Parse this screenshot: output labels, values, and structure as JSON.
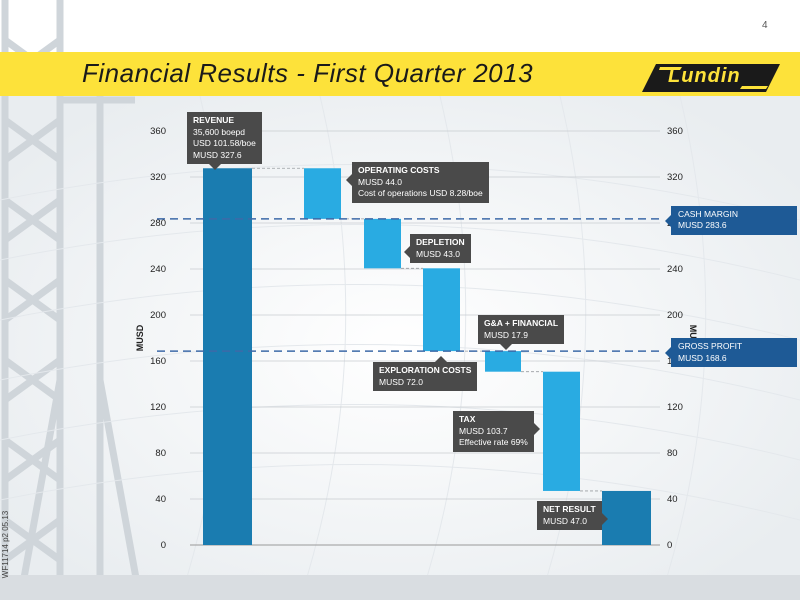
{
  "header": {
    "page_number": "4",
    "title": "Financial Results - First Quarter 2013",
    "logo_text": "Lundin",
    "side_code": "WF11714 p2 05.13"
  },
  "colors": {
    "title_band": "#fde23a",
    "bar_dark": "#1a7cb0",
    "bar_light": "#29abe2",
    "reference_line": "#3d6aa8",
    "callout": "#4a4a4a"
  },
  "chart_data": {
    "type": "bar",
    "subtype": "waterfall",
    "ylabel": "MUSD",
    "ylabel_right": "MUSD",
    "ylim": [
      0,
      360
    ],
    "yticks": [
      "0",
      "40",
      "80",
      "120",
      "160",
      "200",
      "240",
      "280",
      "320",
      "360"
    ],
    "grid": true,
    "bars": [
      {
        "id": "revenue",
        "kind": "total",
        "start": 0,
        "end": 327.6,
        "label_head": "REVENUE",
        "label_lines": [
          "35,600 boepd",
          "USD 101.58/boe",
          "MUSD 327.6"
        ]
      },
      {
        "id": "operating",
        "kind": "step",
        "start": 327.6,
        "end": 283.6,
        "label_head": "OPERATING COSTS",
        "label_lines": [
          "MUSD 44.0",
          "Cost of operations USD 8.28/boe"
        ]
      },
      {
        "id": "depletion",
        "kind": "step",
        "start": 283.6,
        "end": 240.6,
        "label_head": "DEPLETION",
        "label_lines": [
          "MUSD  43.0"
        ]
      },
      {
        "id": "exploration",
        "kind": "step",
        "start": 240.6,
        "end": 168.6,
        "label_head": "EXPLORATION COSTS",
        "label_lines": [
          "MUSD 72.0"
        ]
      },
      {
        "id": "ga",
        "kind": "step",
        "start": 168.6,
        "end": 150.7,
        "label_head": "G&A + FINANCIAL",
        "label_lines": [
          "MUSD 17.9"
        ]
      },
      {
        "id": "tax",
        "kind": "step",
        "start": 150.7,
        "end": 47.0,
        "label_head": "TAX",
        "label_lines": [
          "MUSD 103.7",
          "Effective rate 69%"
        ]
      },
      {
        "id": "net",
        "kind": "total",
        "start": 0,
        "end": 47.0,
        "label_head": "NET RESULT",
        "label_lines": [
          "MUSD 47.0"
        ]
      }
    ],
    "reference_lines": [
      {
        "id": "cash_margin",
        "value": 283.6,
        "label_head": "CASH MARGIN",
        "label_value": "MUSD  283.6"
      },
      {
        "id": "gross_profit",
        "value": 168.6,
        "label_head": "GROSS PROFIT",
        "label_value": "MUSD  168.6"
      }
    ]
  }
}
